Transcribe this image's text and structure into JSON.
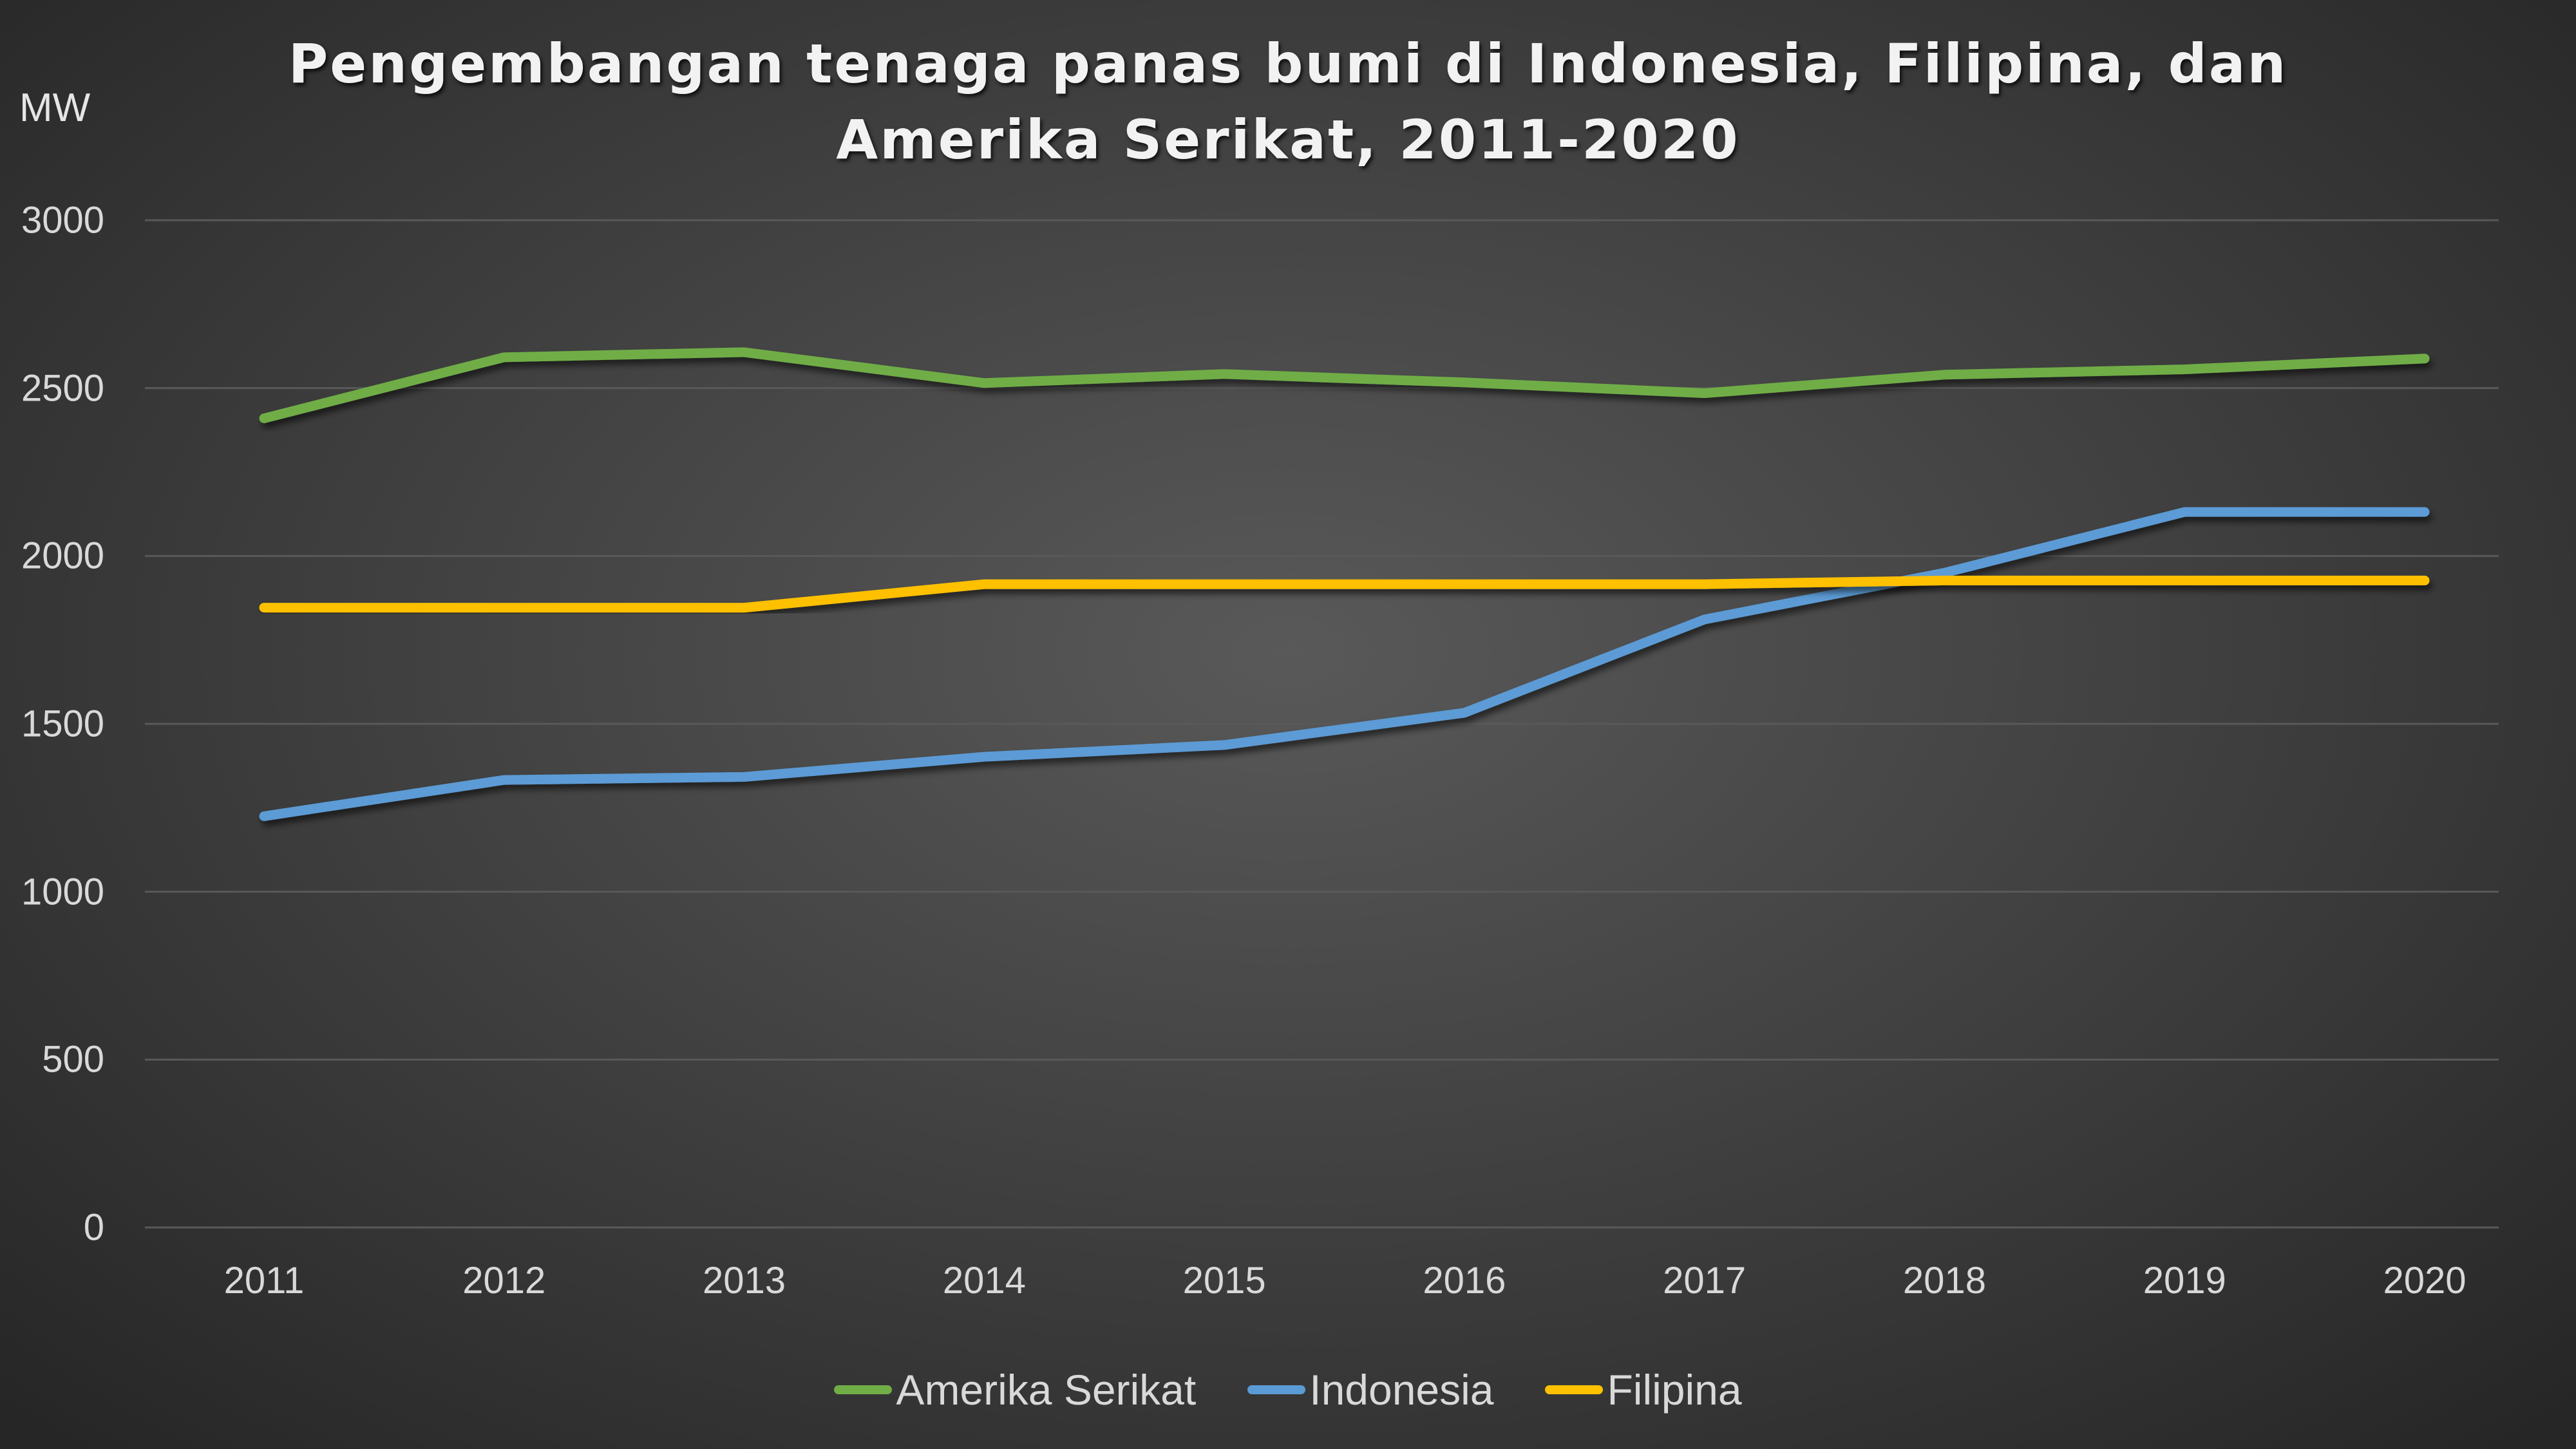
{
  "title": {
    "line1": "Pengembangan tenaga panas bumi di Indonesia, Filipina, dan",
    "line2": "Amerika Serikat, 2011-2020"
  },
  "y_unit": "MW",
  "y_ticks": [
    "3000",
    "2500",
    "2000",
    "1500",
    "1000",
    "500",
    "0"
  ],
  "x_ticks": [
    "2011",
    "2012",
    "2013",
    "2014",
    "2015",
    "2016",
    "2017",
    "2018",
    "2019",
    "2020"
  ],
  "legend": [
    {
      "label": "Amerika Serikat",
      "color": "#70ad47"
    },
    {
      "label": "Indonesia",
      "color": "#5b9bd5"
    },
    {
      "label": "Filipina",
      "color": "#ffc000"
    }
  ],
  "chart_data": {
    "type": "line",
    "title": "Pengembangan tenaga panas bumi di Indonesia, Filipina, dan Amerika Serikat, 2011-2020",
    "xlabel": "",
    "ylabel": "MW",
    "ylim": [
      0,
      3000
    ],
    "yticks": [
      0,
      500,
      1000,
      1500,
      2000,
      2500,
      3000
    ],
    "grid": true,
    "legend_position": "bottom",
    "categories": [
      "2011",
      "2012",
      "2013",
      "2014",
      "2015",
      "2016",
      "2017",
      "2018",
      "2019",
      "2020"
    ],
    "series": [
      {
        "name": "Amerika Serikat",
        "color": "#70ad47",
        "values": [
          2410,
          2592,
          2607,
          2515,
          2542,
          2517,
          2485,
          2540,
          2556,
          2588
        ]
      },
      {
        "name": "Indonesia",
        "color": "#5b9bd5",
        "values": [
          1225,
          1333,
          1342,
          1402,
          1437,
          1533,
          1811,
          1950,
          2131,
          2131
        ]
      },
      {
        "name": "Filipina",
        "color": "#ffc000",
        "values": [
          1846,
          1846,
          1846,
          1916,
          1916,
          1916,
          1916,
          1927,
          1927,
          1927
        ]
      }
    ]
  }
}
